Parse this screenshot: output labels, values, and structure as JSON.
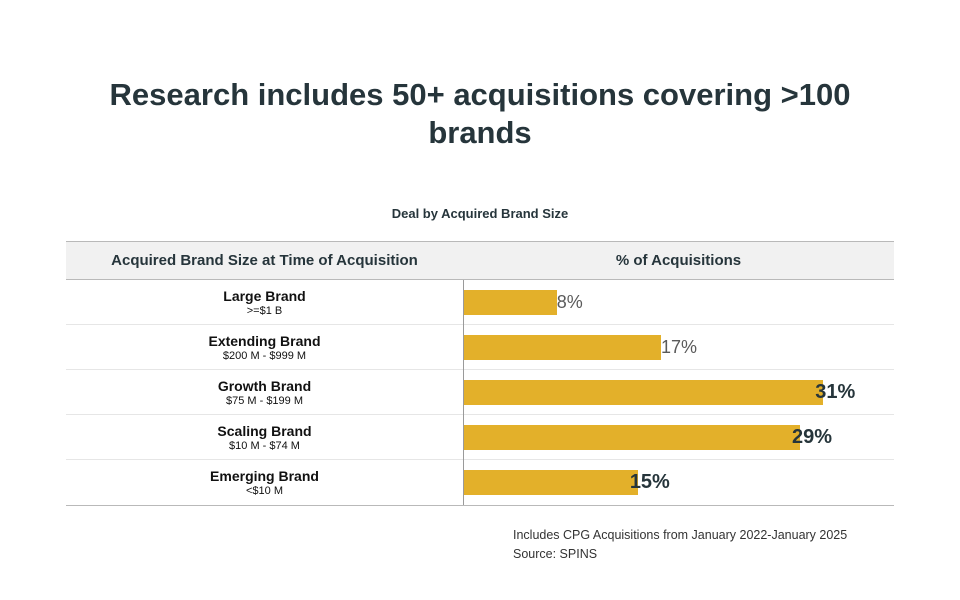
{
  "title": "Research includes 50+ acquisitions covering >100 brands",
  "chart_data": {
    "type": "bar",
    "orientation": "horizontal",
    "title": "Deal by Acquired Brand Size",
    "columns": [
      "Acquired Brand Size at Time of Acquisition",
      "% of Acquisitions"
    ],
    "categories": [
      "Large Brand",
      "Extending Brand",
      "Growth Brand",
      "Scaling Brand",
      "Emerging Brand"
    ],
    "ranges": [
      ">=$1 B",
      "$200 M - $999 M",
      "$75 M - $199 M",
      "$10 M - $74 M",
      "<$10 M"
    ],
    "values": [
      8,
      17,
      31,
      29,
      15
    ],
    "value_labels": [
      "8%",
      "17%",
      "31%",
      "29%",
      "15%"
    ],
    "xlim": [
      0,
      34
    ],
    "bar_color": "#e3b02a",
    "grid": false
  },
  "footnote": {
    "line1": "Includes CPG Acquisitions from January 2022-January 2025",
    "line2": "Source: SPINS"
  }
}
